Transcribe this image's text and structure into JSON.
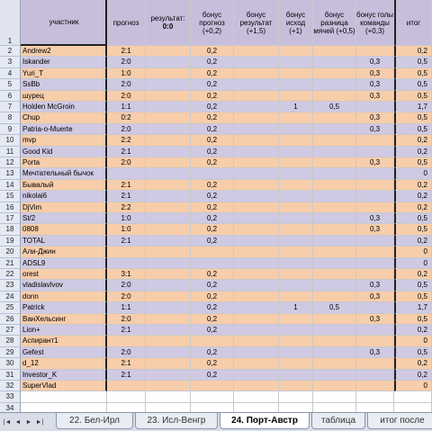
{
  "columns": {
    "name": "участник",
    "forecast": "прогноз",
    "result_label": "результат:",
    "result_value": "0:0",
    "bonus_forecast": "бонус прогноз (+0,2)",
    "bonus_result": "бонус результат (+1,5)",
    "bonus_outcome": "бонус исход (+1)",
    "bonus_diff": "бонус разница мячей (+0,5)",
    "bonus_goals": "бонус голы команды (+0,3)",
    "total": "итог"
  },
  "row_numbers": [
    "1",
    "2",
    "3",
    "4",
    "5",
    "6",
    "7",
    "8",
    "9",
    "10",
    "11",
    "12",
    "13",
    "14",
    "15",
    "16",
    "17",
    "18",
    "19",
    "20",
    "21",
    "22",
    "23",
    "24",
    "25",
    "26",
    "27",
    "28",
    "29",
    "30",
    "31",
    "32",
    "33",
    "34"
  ],
  "rows": [
    {
      "name": "Andrew2",
      "forecast": "2:1",
      "bf": "0,2",
      "br": "",
      "bo": "",
      "bd": "",
      "bg": "",
      "total": "0,2"
    },
    {
      "name": "Iskander",
      "forecast": "2:0",
      "bf": "0,2",
      "br": "",
      "bo": "",
      "bd": "",
      "bg": "0,3",
      "total": "0,5"
    },
    {
      "name": "Yuri_T",
      "forecast": "1:0",
      "bf": "0,2",
      "br": "",
      "bo": "",
      "bd": "",
      "bg": "0,3",
      "total": "0,5"
    },
    {
      "name": "SsBb",
      "forecast": "2:0",
      "bf": "0,2",
      "br": "",
      "bo": "",
      "bd": "",
      "bg": "0,3",
      "total": "0,5"
    },
    {
      "name": "шурец",
      "forecast": "2:0",
      "bf": "0,2",
      "br": "",
      "bo": "",
      "bd": "",
      "bg": "0,3",
      "total": "0,5"
    },
    {
      "name": "Holden McGroin",
      "forecast": "1:1",
      "bf": "0,2",
      "br": "",
      "bo": "1",
      "bd": "0,5",
      "bg": "",
      "total": "1,7"
    },
    {
      "name": "Chup",
      "forecast": "0:2",
      "bf": "0,2",
      "br": "",
      "bo": "",
      "bd": "",
      "bg": "0,3",
      "total": "0,5"
    },
    {
      "name": "Patria-o-Muerte",
      "forecast": "2:0",
      "bf": "0,2",
      "br": "",
      "bo": "",
      "bd": "",
      "bg": "0,3",
      "total": "0,5"
    },
    {
      "name": "mvp",
      "forecast": "2:2",
      "bf": "0,2",
      "br": "",
      "bo": "",
      "bd": "",
      "bg": "",
      "total": "0,2"
    },
    {
      "name": "Good Kid",
      "forecast": "2:1",
      "bf": "0,2",
      "br": "",
      "bo": "",
      "bd": "",
      "bg": "",
      "total": "0,2"
    },
    {
      "name": "Porta",
      "forecast": "2:0",
      "bf": "0,2",
      "br": "",
      "bo": "",
      "bd": "",
      "bg": "0,3",
      "total": "0,5"
    },
    {
      "name": "Мечтательный бычок",
      "forecast": "",
      "bf": "",
      "br": "",
      "bo": "",
      "bd": "",
      "bg": "",
      "total": "0"
    },
    {
      "name": "Бывалый",
      "forecast": "2:1",
      "bf": "0,2",
      "br": "",
      "bo": "",
      "bd": "",
      "bg": "",
      "total": "0,2"
    },
    {
      "name": "nikolai6",
      "forecast": "2:1",
      "bf": "0,2",
      "br": "",
      "bo": "",
      "bd": "",
      "bg": "",
      "total": "0,2"
    },
    {
      "name": "DjVim",
      "forecast": "2:2",
      "bf": "0,2",
      "br": "",
      "bo": "",
      "bd": "",
      "bg": "",
      "total": "0,2"
    },
    {
      "name": "St/2",
      "forecast": "1:0",
      "bf": "0,2",
      "br": "",
      "bo": "",
      "bd": "",
      "bg": "0,3",
      "total": "0,5"
    },
    {
      "name": "0808",
      "forecast": "1:0",
      "bf": "0,2",
      "br": "",
      "bo": "",
      "bd": "",
      "bg": "0,3",
      "total": "0,5"
    },
    {
      "name": "TOTAL",
      "forecast": "2:1",
      "bf": "0,2",
      "br": "",
      "bo": "",
      "bd": "",
      "bg": "",
      "total": "0,2"
    },
    {
      "name": "Али-Джин",
      "forecast": "",
      "bf": "",
      "br": "",
      "bo": "",
      "bd": "",
      "bg": "",
      "total": "0"
    },
    {
      "name": "ADSL9",
      "forecast": "",
      "bf": "",
      "br": "",
      "bo": "",
      "bd": "",
      "bg": "",
      "total": "0"
    },
    {
      "name": "orest",
      "forecast": "3:1",
      "bf": "0,2",
      "br": "",
      "bo": "",
      "bd": "",
      "bg": "",
      "total": "0,2"
    },
    {
      "name": "vladislavlvov",
      "forecast": "2:0",
      "bf": "0,2",
      "br": "",
      "bo": "",
      "bd": "",
      "bg": "0,3",
      "total": "0,5"
    },
    {
      "name": "donn",
      "forecast": "2:0",
      "bf": "0,2",
      "br": "",
      "bo": "",
      "bd": "",
      "bg": "0,3",
      "total": "0,5"
    },
    {
      "name": "Patrick",
      "forecast": "1:1",
      "bf": "0,2",
      "br": "",
      "bo": "1",
      "bd": "0,5",
      "bg": "",
      "total": "1,7"
    },
    {
      "name": "ВанХельсинг",
      "forecast": "2:0",
      "bf": "0,2",
      "br": "",
      "bo": "",
      "bd": "",
      "bg": "0,3",
      "total": "0,5"
    },
    {
      "name": "Lion+",
      "forecast": "2:1",
      "bf": "0,2",
      "br": "",
      "bo": "",
      "bd": "",
      "bg": "",
      "total": "0,2"
    },
    {
      "name": "Аспирант1",
      "forecast": "",
      "bf": "",
      "br": "",
      "bo": "",
      "bd": "",
      "bg": "",
      "total": "0"
    },
    {
      "name": "Gefest",
      "forecast": "2:0",
      "bf": "0,2",
      "br": "",
      "bo": "",
      "bd": "",
      "bg": "0,3",
      "total": "0,5"
    },
    {
      "name": "d_12",
      "forecast": "2:1",
      "bf": "0,2",
      "br": "",
      "bo": "",
      "bd": "",
      "bg": "",
      "total": "0,2"
    },
    {
      "name": "Investor_K",
      "forecast": "2:1",
      "bf": "0,2",
      "br": "",
      "bo": "",
      "bd": "",
      "bg": "",
      "total": "0,2"
    },
    {
      "name": "SuperVlad",
      "forecast": "",
      "bf": "",
      "br": "",
      "bo": "",
      "bd": "",
      "bg": "",
      "total": "0"
    }
  ],
  "nav_buttons": [
    "|◄",
    "◄",
    "►",
    "►|"
  ],
  "tabs": [
    {
      "label": "22. Бел-Ирл",
      "active": false
    },
    {
      "label": "23. Исл-Венгр",
      "active": false
    },
    {
      "label": "24. Порт-Австр",
      "active": true
    },
    {
      "label": "таблица",
      "active": false
    },
    {
      "label": "итог после",
      "active": false
    }
  ],
  "colors": {
    "row_a": "#f7cdaa",
    "row_b": "#cfc9e3",
    "header": "#c7bedb",
    "row_header": "#e4e9f3"
  }
}
